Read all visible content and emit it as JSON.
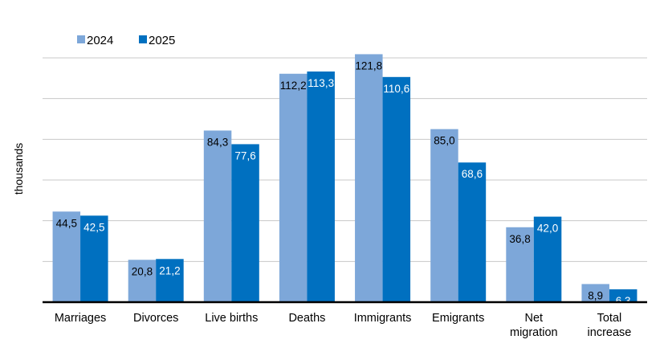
{
  "chart_data": {
    "type": "bar",
    "title": "",
    "xlabel": "",
    "ylabel": "thousands",
    "ylim": [
      0,
      120
    ],
    "grid": true,
    "gridline_step": 20,
    "y_tick_labels_shown": false,
    "legend_position": "top-left",
    "categories": [
      "Marriages",
      "Divorces",
      "Live births",
      "Deaths",
      "Immigrants",
      "Emigrants",
      "Net migration",
      "Total increase"
    ],
    "category_lines": [
      [
        "Marriages"
      ],
      [
        "Divorces"
      ],
      [
        "Live births"
      ],
      [
        "Deaths"
      ],
      [
        "Immigrants"
      ],
      [
        "Emigrants"
      ],
      [
        "Net",
        "migration"
      ],
      [
        "Total",
        "increase"
      ]
    ],
    "series": [
      {
        "name": "2024",
        "color": "#7DA7D9",
        "label_color": "#000000",
        "values": [
          44.5,
          20.8,
          84.3,
          112.2,
          121.8,
          85.0,
          36.8,
          8.9
        ],
        "labels": [
          "44,5",
          "20,8",
          "84,3",
          "112,2",
          "121,8",
          "85,0",
          "36,8",
          "8,9"
        ]
      },
      {
        "name": "2025",
        "color": "#0070C0",
        "label_color": "#FFFFFF",
        "values": [
          42.5,
          21.2,
          77.6,
          113.3,
          110.6,
          68.6,
          42.0,
          6.3
        ],
        "labels": [
          "42,5",
          "21,2",
          "77,6",
          "113,3",
          "110,6",
          "68,6",
          "42,0",
          "6,3"
        ]
      }
    ]
  }
}
